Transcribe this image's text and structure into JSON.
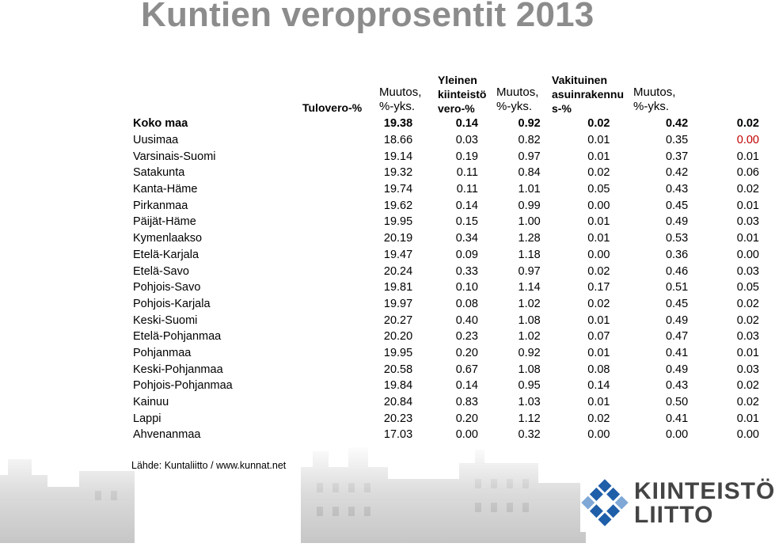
{
  "title": "Kuntien veroprosentit 2013",
  "headers": {
    "tulovero": "Tulovero-%",
    "muutos1": [
      "Muutos,",
      "%-yks."
    ],
    "yleinen": [
      "Yleinen",
      "kiinteistö",
      "vero-%"
    ],
    "muutos2": [
      "Muutos,",
      "%-yks."
    ],
    "vakituinen": [
      "Vakituinen",
      "asuinrakennu",
      "s-%"
    ],
    "muutos3": [
      "Muutos,",
      "%-yks."
    ]
  },
  "rows": [
    {
      "name": "Koko maa",
      "v": [
        "19.38",
        "0.14",
        "0.92",
        "0.02",
        "0.42",
        "0.02"
      ]
    },
    {
      "name": "Uusimaa",
      "v": [
        "18.66",
        "0.03",
        "0.82",
        "0.01",
        "0.35",
        "0.00"
      ]
    },
    {
      "name": "Varsinais-Suomi",
      "v": [
        "19.14",
        "0.19",
        "0.97",
        "0.01",
        "0.37",
        "0.01"
      ]
    },
    {
      "name": "Satakunta",
      "v": [
        "19.32",
        "0.11",
        "0.84",
        "0.02",
        "0.42",
        "0.06"
      ]
    },
    {
      "name": "Kanta-Häme",
      "v": [
        "19.74",
        "0.11",
        "1.01",
        "0.05",
        "0.43",
        "0.02"
      ]
    },
    {
      "name": "Pirkanmaa",
      "v": [
        "19.62",
        "0.14",
        "0.99",
        "0.00",
        "0.45",
        "0.01"
      ]
    },
    {
      "name": "Päijät-Häme",
      "v": [
        "19.95",
        "0.15",
        "1.00",
        "0.01",
        "0.49",
        "0.03"
      ]
    },
    {
      "name": "Kymenlaakso",
      "v": [
        "20.19",
        "0.34",
        "1.28",
        "0.01",
        "0.53",
        "0.01"
      ]
    },
    {
      "name": "Etelä-Karjala",
      "v": [
        "19.47",
        "0.09",
        "1.18",
        "0.00",
        "0.36",
        "0.00"
      ]
    },
    {
      "name": "Etelä-Savo",
      "v": [
        "20.24",
        "0.33",
        "0.97",
        "0.02",
        "0.46",
        "0.03"
      ]
    },
    {
      "name": "Pohjois-Savo",
      "v": [
        "19.81",
        "0.10",
        "1.14",
        "0.17",
        "0.51",
        "0.05"
      ]
    },
    {
      "name": "Pohjois-Karjala",
      "v": [
        "19.97",
        "0.08",
        "1.02",
        "0.02",
        "0.45",
        "0.02"
      ]
    },
    {
      "name": "Keski-Suomi",
      "v": [
        "20.27",
        "0.40",
        "1.08",
        "0.01",
        "0.49",
        "0.02"
      ]
    },
    {
      "name": "Etelä-Pohjanmaa",
      "v": [
        "20.20",
        "0.23",
        "1.02",
        "0.07",
        "0.47",
        "0.03"
      ]
    },
    {
      "name": "Pohjanmaa",
      "v": [
        "19.95",
        "0.20",
        "0.92",
        "0.01",
        "0.41",
        "0.01"
      ]
    },
    {
      "name": "Keski-Pohjanmaa",
      "v": [
        "20.58",
        "0.67",
        "1.08",
        "0.08",
        "0.49",
        "0.03"
      ]
    },
    {
      "name": "Pohjois-Pohjanmaa",
      "v": [
        "19.84",
        "0.14",
        "0.95",
        "0.14",
        "0.43",
        "0.02"
      ]
    },
    {
      "name": "Kainuu",
      "v": [
        "20.84",
        "0.83",
        "1.03",
        "0.01",
        "0.50",
        "0.02"
      ]
    },
    {
      "name": "Lappi",
      "v": [
        "20.23",
        "0.20",
        "1.12",
        "0.02",
        "0.41",
        "0.01"
      ]
    },
    {
      "name": "Ahvenanmaa",
      "v": [
        "17.03",
        "0.00",
        "0.32",
        "0.00",
        "0.00",
        "0.00"
      ]
    }
  ],
  "highlight_color": "#c00000",
  "source": "Lähde: Kuntaliitto / www.kunnat.net",
  "logo": {
    "line1": "KIINTEISTÖ",
    "line2": "LIITTO",
    "icon": "diamond-grid-logo-icon"
  }
}
